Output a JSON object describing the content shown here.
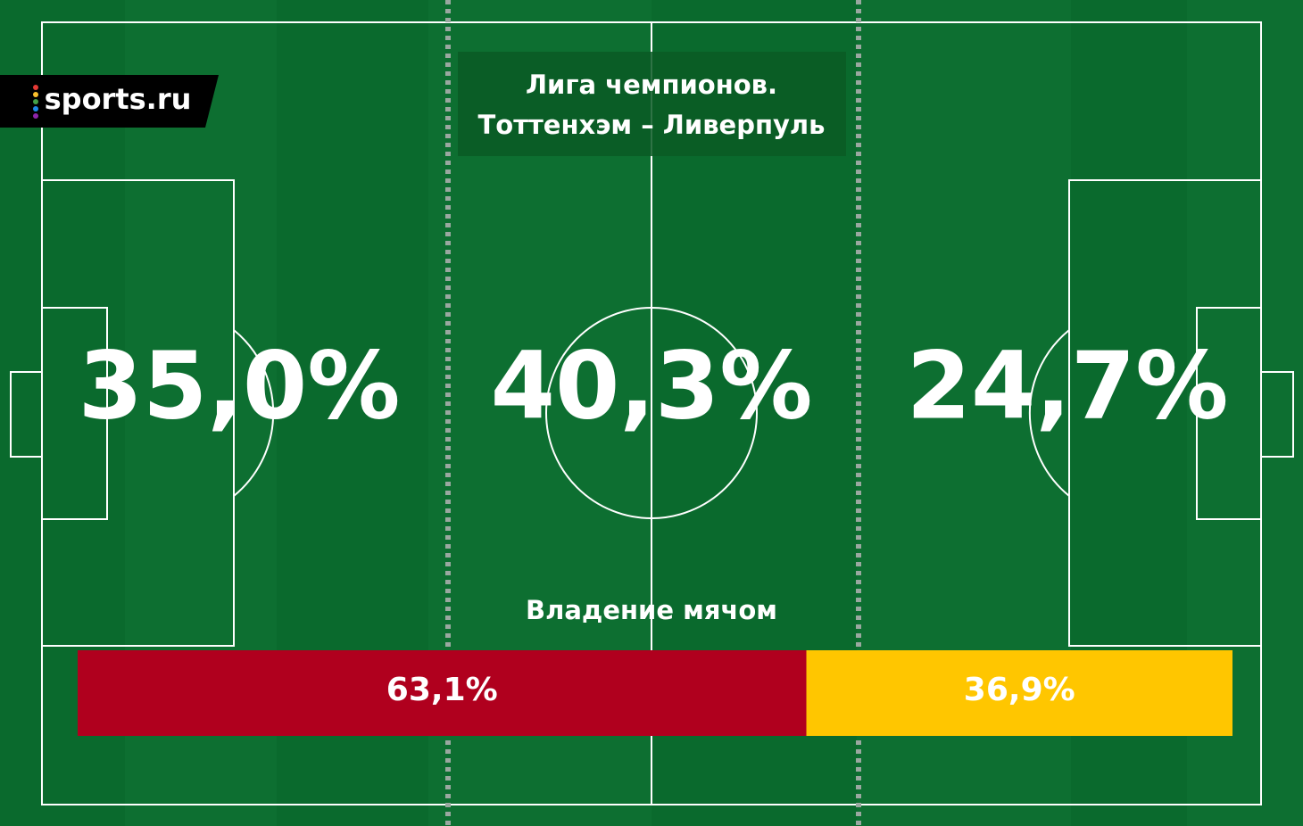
{
  "logo": "sports.ru",
  "title": [
    "Лига чемпионов.",
    "Тоттенхэм – Ливерпуль"
  ],
  "zones": [
    {
      "value": 35.0,
      "label": "35,0%"
    },
    {
      "value": 40.3,
      "label": "40,3%"
    },
    {
      "value": 24.7,
      "label": "24,7%"
    }
  ],
  "possession": {
    "title": "Владение мячом",
    "segments": [
      {
        "value": 63.1,
        "label": "63,1%",
        "color": "#b0001e"
      },
      {
        "value": 36.9,
        "label": "36,9%",
        "color": "#ffc600"
      }
    ]
  }
}
